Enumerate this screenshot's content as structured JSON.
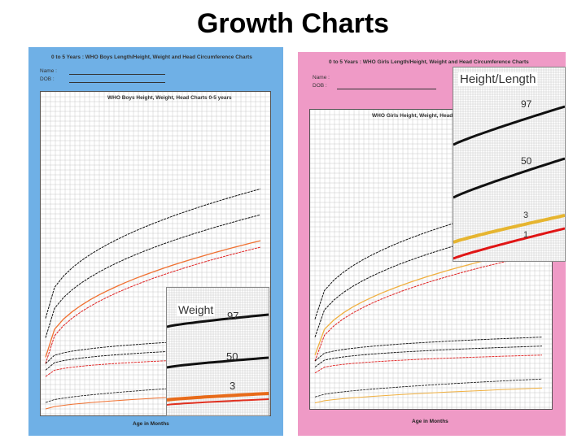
{
  "slide": {
    "title": "Growth Charts"
  },
  "boys_chart": {
    "header_title": "0 to 5 Years : WHO Boys Length/Height, Weight and Head Circumference Charts",
    "name_label": "Name :",
    "dob_label": "DOB :",
    "plot_title": "WHO Boys Height, Weight, Head Charts 0-5 years",
    "x_label": "Age in Months",
    "background_color": "#6fb0e6"
  },
  "girls_chart": {
    "header_title": "0 to 5 Years : WHO Girls Length/Height, Weight and Head Circumference Charts",
    "name_label": "Name :",
    "dob_label": "DOB :",
    "plot_title": "WHO Girls Height, Weight, Head C",
    "x_label": "Age in Months",
    "background_color": "#ef9ac6"
  },
  "weight_inset": {
    "title": "Weight",
    "labels": {
      "p97": "97",
      "p50": "50",
      "p3": "3"
    },
    "colors": {
      "p97": "#111111",
      "p50": "#111111",
      "p3": "#e86b1a",
      "low": "#e03020"
    }
  },
  "height_inset": {
    "title": "Height/Length",
    "labels": {
      "p97": "97",
      "p50": "50",
      "p3": "3",
      "p1": "1"
    },
    "colors": {
      "p97": "#111111",
      "p50": "#111111",
      "p3": "#e6b530",
      "p1": "#e01515"
    }
  }
}
